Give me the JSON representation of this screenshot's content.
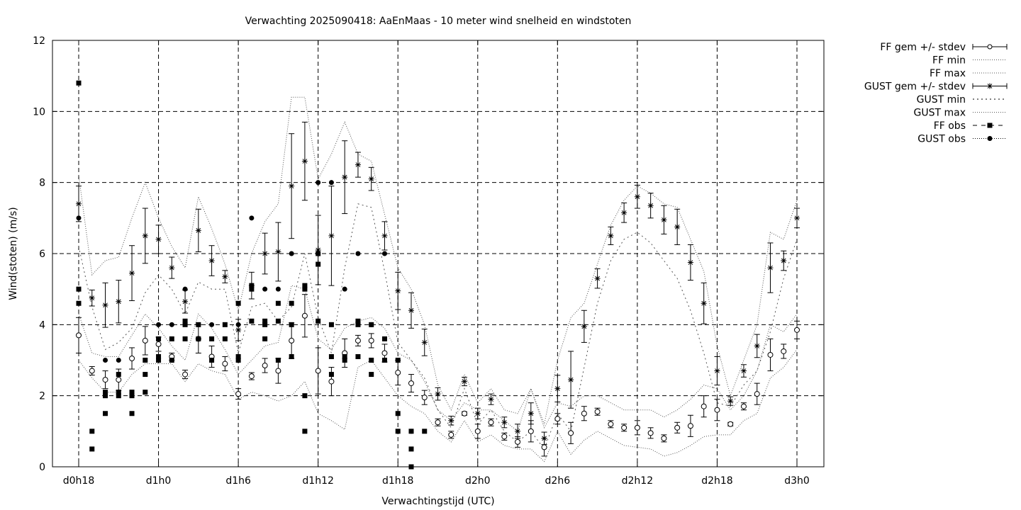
{
  "chart_data": {
    "type": "line",
    "title": "Verwachting 2025090418: AaEnMaas - 10 meter wind snelheid en windstoten",
    "xlabel": "Verwachtingstijd (UTC)",
    "ylabel": "Wind(stoten) (m/s)",
    "ylim": [
      0,
      12
    ],
    "yticks": [
      0,
      2,
      4,
      6,
      8,
      10,
      12
    ],
    "xlim_hours": [
      -1,
      56
    ],
    "xticks": [
      {
        "h": 0,
        "label": "d0h18"
      },
      {
        "h": 6,
        "label": "d1h0"
      },
      {
        "h": 12,
        "label": "d1h6"
      },
      {
        "h": 18,
        "label": "d1h12"
      },
      {
        "h": 24,
        "label": "d1h18"
      },
      {
        "h": 30,
        "label": "d2h0"
      },
      {
        "h": 36,
        "label": "d2h6"
      },
      {
        "h": 42,
        "label": "d2h12"
      },
      {
        "h": 48,
        "label": "d2h18"
      },
      {
        "h": 54,
        "label": "d3h0"
      }
    ],
    "grid": true,
    "legend_position": "outside-top-right",
    "hours": [
      0,
      1,
      2,
      3,
      4,
      5,
      6,
      7,
      8,
      9,
      10,
      11,
      12,
      13,
      14,
      15,
      16,
      17,
      18,
      19,
      20,
      21,
      22,
      23,
      24,
      25,
      26,
      27,
      28,
      29,
      30,
      31,
      32,
      33,
      34,
      35,
      36,
      37,
      38,
      39,
      40,
      41,
      42,
      43,
      44,
      45,
      46,
      47,
      48,
      49,
      50,
      51,
      52,
      53,
      54
    ],
    "series": [
      {
        "name": "FF gem +/- stdev",
        "style": "errorbar-open-circle",
        "mean": [
          3.7,
          2.7,
          2.45,
          2.45,
          3.05,
          3.55,
          3.45,
          3.1,
          2.6,
          3.6,
          3.1,
          2.9,
          2.05,
          2.55,
          2.85,
          2.7,
          3.55,
          4.25,
          2.7,
          2.4,
          3.2,
          3.55,
          3.55,
          3.2,
          2.65,
          2.35,
          1.95,
          1.25,
          0.9,
          1.5,
          1.0,
          1.25,
          0.85,
          0.7,
          1.0,
          0.55,
          1.35,
          0.95,
          1.5,
          1.55,
          1.2,
          1.1,
          1.1,
          0.95,
          0.8,
          1.1,
          1.15,
          1.7,
          1.6,
          1.2,
          1.7,
          2.05,
          3.15,
          3.25,
          3.85
        ],
        "stdev": [
          0.5,
          0.12,
          0.25,
          0.3,
          0.3,
          0.4,
          0.2,
          0.1,
          0.12,
          0.4,
          0.3,
          0.2,
          0.15,
          0.1,
          0.2,
          0.35,
          0.5,
          0.6,
          0.65,
          0.4,
          0.4,
          0.15,
          0.2,
          0.25,
          0.35,
          0.25,
          0.2,
          0.1,
          0.1,
          0.05,
          0.2,
          0.1,
          0.1,
          0.15,
          0.3,
          0.25,
          0.15,
          0.3,
          0.2,
          0.1,
          0.1,
          0.1,
          0.2,
          0.15,
          0.1,
          0.15,
          0.3,
          0.3,
          0.3,
          0.05,
          0.1,
          0.3,
          0.45,
          0.2,
          0.25
        ]
      },
      {
        "name": "FF min",
        "style": "dotted",
        "values": [
          3.0,
          2.5,
          2.1,
          2.1,
          2.6,
          2.9,
          2.9,
          2.9,
          2.4,
          2.9,
          2.7,
          2.6,
          1.9,
          2.1,
          2.0,
          1.85,
          2.0,
          2.4,
          1.5,
          1.3,
          1.05,
          2.8,
          3.0,
          2.5,
          2.0,
          1.7,
          1.5,
          1.0,
          0.7,
          1.3,
          0.7,
          0.9,
          0.6,
          0.5,
          0.5,
          0.15,
          1.0,
          0.35,
          0.75,
          1.0,
          0.8,
          0.6,
          0.55,
          0.5,
          0.3,
          0.4,
          0.6,
          0.85,
          0.9,
          0.9,
          1.3,
          1.5,
          2.5,
          2.8,
          3.3
        ]
      },
      {
        "name": "FF max",
        "style": "dotted",
        "values": [
          4.3,
          3.2,
          3.1,
          3.1,
          3.7,
          4.3,
          3.9,
          3.4,
          3.0,
          4.3,
          3.9,
          3.3,
          2.6,
          3.0,
          3.4,
          3.5,
          5.1,
          5.0,
          3.6,
          3.3,
          3.9,
          4.1,
          4.2,
          3.9,
          3.2,
          3.0,
          2.4,
          1.6,
          1.3,
          1.8,
          1.6,
          1.6,
          1.3,
          1.0,
          2.2,
          1.1,
          1.8,
          1.7,
          2.0,
          2.0,
          1.8,
          1.6,
          1.6,
          1.6,
          1.4,
          1.6,
          1.9,
          2.3,
          2.2,
          1.6,
          2.0,
          2.7,
          4.0,
          3.8,
          4.3
        ]
      },
      {
        "name": "GUST gem +/- stdev",
        "style": "errorbar-asterisk",
        "mean": [
          7.4,
          4.75,
          4.55,
          4.65,
          5.45,
          6.5,
          6.4,
          5.6,
          4.65,
          6.65,
          5.8,
          5.35,
          3.85,
          5.1,
          6.0,
          6.05,
          7.9,
          8.6,
          6.1,
          6.5,
          8.15,
          8.5,
          8.1,
          6.5,
          4.95,
          4.4,
          3.5,
          2.05,
          1.3,
          2.4,
          1.5,
          1.9,
          1.25,
          1.0,
          1.5,
          0.8,
          2.2,
          2.45,
          3.95,
          5.3,
          6.5,
          7.15,
          7.6,
          7.35,
          6.95,
          6.75,
          5.75,
          4.6,
          2.7,
          1.85,
          2.7,
          3.4,
          5.6,
          5.8,
          7.0
        ]
      },
      {
        "name": "GUST min",
        "style": "sparse-dotted",
        "values": [
          6.2,
          4.5,
          3.3,
          3.5,
          3.9,
          4.9,
          5.4,
          5.0,
          4.3,
          5.2,
          5.0,
          5.0,
          3.2,
          4.5,
          4.6,
          4.1,
          4.5,
          6.0,
          4.2,
          3.2,
          5.6,
          7.4,
          7.3,
          5.5,
          3.5,
          3.0,
          2.5,
          1.6,
          1.1,
          2.2,
          1.2,
          1.6,
          1.0,
          0.7,
          1.0,
          0.5,
          1.5,
          1.0,
          2.8,
          4.6,
          5.8,
          6.4,
          6.6,
          6.3,
          5.8,
          5.3,
          4.4,
          3.2,
          1.8,
          1.7,
          2.3,
          2.7,
          3.8,
          5.3,
          6.4
        ]
      },
      {
        "name": "GUST max",
        "style": "dotted",
        "values": [
          8.2,
          5.4,
          5.8,
          5.9,
          7.0,
          8.0,
          7.0,
          6.2,
          5.6,
          7.6,
          6.7,
          5.7,
          4.4,
          6.0,
          6.9,
          7.4,
          10.4,
          10.4,
          8.1,
          8.8,
          9.7,
          8.8,
          8.6,
          7.1,
          5.6,
          5.0,
          4.0,
          2.3,
          1.6,
          2.6,
          1.8,
          2.2,
          1.6,
          1.5,
          2.2,
          1.2,
          3.0,
          4.2,
          4.6,
          5.7,
          6.8,
          7.5,
          7.9,
          7.7,
          7.4,
          7.3,
          6.4,
          5.5,
          3.4,
          2.0,
          3.0,
          4.0,
          6.6,
          6.4,
          7.5
        ]
      },
      {
        "name": "FF obs",
        "style": "filled-square",
        "points": [
          [
            0,
            10.8
          ],
          [
            0,
            5.0
          ],
          [
            0,
            4.6
          ],
          [
            1,
            1.0
          ],
          [
            1,
            0.5
          ],
          [
            2,
            2.1
          ],
          [
            2,
            2.0
          ],
          [
            2,
            1.5
          ],
          [
            3,
            2.6
          ],
          [
            3,
            2.1
          ],
          [
            3,
            2.0
          ],
          [
            4,
            2.1
          ],
          [
            4,
            2.0
          ],
          [
            4,
            1.5
          ],
          [
            5,
            3.0
          ],
          [
            5,
            2.6
          ],
          [
            5,
            2.1
          ],
          [
            6,
            3.6
          ],
          [
            6,
            3.1
          ],
          [
            6,
            3.0
          ],
          [
            7,
            3.6
          ],
          [
            7,
            3.0
          ],
          [
            8,
            4.1
          ],
          [
            8,
            4.0
          ],
          [
            8,
            3.6
          ],
          [
            9,
            4.0
          ],
          [
            9,
            3.6
          ],
          [
            10,
            3.6
          ],
          [
            10,
            3.0
          ],
          [
            11,
            4.0
          ],
          [
            11,
            3.6
          ],
          [
            12,
            4.6
          ],
          [
            12,
            3.1
          ],
          [
            12,
            3.0
          ],
          [
            13,
            5.1
          ],
          [
            13,
            5.0
          ],
          [
            13,
            4.1
          ],
          [
            14,
            4.1
          ],
          [
            14,
            4.0
          ],
          [
            14,
            3.6
          ],
          [
            15,
            4.6
          ],
          [
            15,
            4.1
          ],
          [
            15,
            3.0
          ],
          [
            16,
            4.6
          ],
          [
            16,
            4.0
          ],
          [
            16,
            3.1
          ],
          [
            17,
            5.1
          ],
          [
            17,
            5.0
          ],
          [
            17,
            2.0
          ],
          [
            17,
            1.0
          ],
          [
            18,
            6.0
          ],
          [
            18,
            5.7
          ],
          [
            18,
            4.1
          ],
          [
            19,
            4.0
          ],
          [
            19,
            3.1
          ],
          [
            19,
            2.6
          ],
          [
            20,
            3.1
          ],
          [
            20,
            3.0
          ],
          [
            21,
            4.1
          ],
          [
            21,
            4.0
          ],
          [
            21,
            3.1
          ],
          [
            22,
            4.0
          ],
          [
            22,
            3.0
          ],
          [
            22,
            2.6
          ],
          [
            23,
            3.6
          ],
          [
            23,
            3.0
          ],
          [
            24,
            3.0
          ],
          [
            24,
            1.5
          ],
          [
            24,
            1.0
          ],
          [
            25,
            1.0
          ],
          [
            25,
            0.5
          ],
          [
            25,
            0.0
          ],
          [
            26,
            1.0
          ]
        ]
      },
      {
        "name": "GUST obs",
        "style": "filled-circle",
        "points": [
          [
            0,
            7.0
          ],
          [
            2,
            3.0
          ],
          [
            3,
            3.0
          ],
          [
            6,
            4.0
          ],
          [
            7,
            4.0
          ],
          [
            8,
            5.0
          ],
          [
            10,
            4.0
          ],
          [
            12,
            4.0
          ],
          [
            13,
            7.0
          ],
          [
            14,
            5.0
          ],
          [
            15,
            5.0
          ],
          [
            16,
            6.0
          ],
          [
            18,
            8.0
          ],
          [
            19,
            8.0
          ],
          [
            20,
            5.0
          ],
          [
            21,
            6.0
          ],
          [
            22,
            4.0
          ],
          [
            23,
            6.0
          ],
          [
            24,
            3.0
          ],
          [
            25,
            1.0
          ]
        ]
      }
    ]
  }
}
